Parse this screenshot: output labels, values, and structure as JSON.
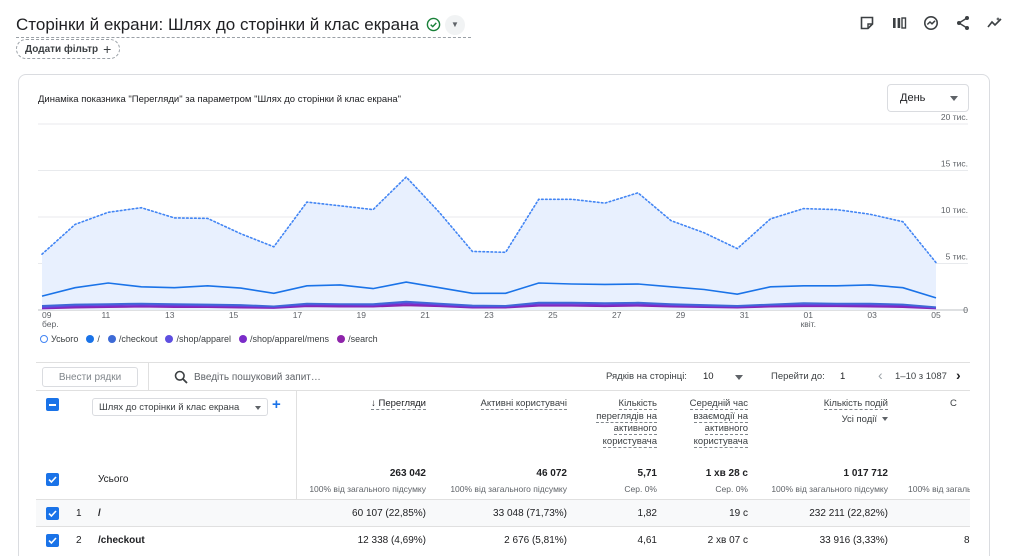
{
  "header": {
    "title": "Сторінки й екрани: Шлях до сторінки й клас екрана",
    "add_filter_label": "Додати фільтр"
  },
  "chart_card": {
    "title": "Динаміка показника \"Перегляди\" за параметром \"Шлях до сторінки й клас екрана\"",
    "granularity": "День"
  },
  "chart_data": {
    "type": "line",
    "x_tick_labels": [
      {
        "day": "09",
        "month": "бер."
      },
      {
        "day": "11",
        "month": ""
      },
      {
        "day": "13",
        "month": ""
      },
      {
        "day": "15",
        "month": ""
      },
      {
        "day": "17",
        "month": ""
      },
      {
        "day": "19",
        "month": ""
      },
      {
        "day": "21",
        "month": ""
      },
      {
        "day": "23",
        "month": ""
      },
      {
        "day": "25",
        "month": ""
      },
      {
        "day": "27",
        "month": ""
      },
      {
        "day": "29",
        "month": ""
      },
      {
        "day": "31",
        "month": ""
      },
      {
        "day": "01",
        "month": "квіт."
      },
      {
        "day": "03",
        "month": ""
      },
      {
        "day": "05",
        "month": ""
      }
    ],
    "y_tick_labels": [
      "20 тис.",
      "15 тис.",
      "10 тис.",
      "5 тис.",
      "0"
    ],
    "ylim": [
      0,
      20000
    ],
    "grid": true,
    "series": [
      {
        "name": "Усього",
        "color": "#4285f4",
        "style": "dotted-area",
        "values": [
          6000,
          9200,
          10500,
          11000,
          9900,
          9850,
          8200,
          6800,
          11600,
          11200,
          10800,
          14300,
          10500,
          6300,
          6200,
          11900,
          11900,
          11500,
          12600,
          9600,
          8300,
          6600,
          9800,
          10900,
          10800,
          10300,
          9500,
          5100
        ]
      },
      {
        "name": "/",
        "color": "#1a73e8",
        "style": "solid",
        "values": [
          1500,
          2400,
          2900,
          2500,
          2400,
          2600,
          2350,
          1800,
          2600,
          2700,
          2300,
          3000,
          2400,
          1800,
          1800,
          2900,
          2800,
          2750,
          2800,
          2500,
          2200,
          1700,
          2500,
          2600,
          2600,
          2700,
          2400,
          1300
        ]
      },
      {
        "name": "/checkout",
        "color": "#3d6ad6",
        "style": "solid",
        "values": [
          450,
          600,
          650,
          700,
          650,
          600,
          550,
          400,
          700,
          650,
          650,
          900,
          700,
          500,
          450,
          800,
          800,
          750,
          800,
          650,
          550,
          450,
          600,
          750,
          700,
          700,
          600,
          300
        ]
      },
      {
        "name": "/shop/apparel",
        "color": "#5e4fe0",
        "style": "solid",
        "values": [
          300,
          500,
          550,
          600,
          550,
          500,
          450,
          350,
          600,
          600,
          550,
          800,
          600,
          400,
          400,
          700,
          700,
          650,
          700,
          550,
          450,
          400,
          550,
          600,
          600,
          600,
          550,
          250
        ]
      },
      {
        "name": "/shop/apparel/mens",
        "color": "#7b2cc9",
        "style": "solid",
        "values": [
          200,
          350,
          400,
          450,
          400,
          400,
          350,
          250,
          500,
          450,
          450,
          650,
          500,
          300,
          300,
          550,
          550,
          500,
          550,
          450,
          350,
          300,
          450,
          500,
          500,
          450,
          400,
          200
        ]
      },
      {
        "name": "/search",
        "color": "#8e24aa",
        "style": "solid",
        "values": [
          150,
          250,
          300,
          350,
          300,
          300,
          250,
          200,
          400,
          350,
          350,
          500,
          400,
          250,
          250,
          450,
          450,
          400,
          450,
          350,
          300,
          250,
          350,
          400,
          400,
          350,
          300,
          150
        ]
      }
    ]
  },
  "legend": [
    {
      "name": "Усього",
      "color": "#4285f4",
      "hollow": true
    },
    {
      "name": "/",
      "color": "#1a73e8",
      "hollow": false
    },
    {
      "name": "/checkout",
      "color": "#3d6ad6",
      "hollow": false
    },
    {
      "name": "/shop/apparel",
      "color": "#5e4fe0",
      "hollow": false
    },
    {
      "name": "/shop/apparel/mens",
      "color": "#7b2cc9",
      "hollow": false
    },
    {
      "name": "/search",
      "color": "#8e24aa",
      "hollow": false
    }
  ],
  "table_toolbar": {
    "plot_rows_label": "Внести рядки",
    "search_placeholder": "Введіть пошуковий запит…",
    "rows_per_page_label": "Рядків на сторінці:",
    "rows_per_page_value": "10",
    "goto_label": "Перейти до:",
    "goto_value": "1",
    "pagination_text": "1–10 з 1087"
  },
  "table": {
    "dimension_select": "Шлях до сторінки й клас екрана",
    "columns": [
      {
        "label": "↓ Перегляди"
      },
      {
        "label": "Активні користувачі"
      },
      {
        "label": "Кількість переглядів на активного користувача"
      },
      {
        "label": "Середній час взаємодії на активного користувача"
      },
      {
        "label": "Кількість подій",
        "sub": "Усі події"
      },
      {
        "label": "С"
      }
    ],
    "totals": {
      "label": "Усього",
      "values": [
        "263 042",
        "46 072",
        "5,71",
        "1 хв 28 с",
        "1 017 712",
        ""
      ],
      "subs": [
        "100% від загального підсумку",
        "100% від загального підсумку",
        "Сер. 0%",
        "Сер. 0%",
        "100% від загального підсумку",
        "100% від загаль"
      ]
    },
    "rows": [
      {
        "index": "1",
        "path": "/",
        "values": [
          "60 107 (22,85%)",
          "33 048 (71,73%)",
          "1,82",
          "19 с",
          "232 211 (22,82%)",
          ""
        ]
      },
      {
        "index": "2",
        "path": "/checkout",
        "values": [
          "12 338 (4,69%)",
          "2 676 (5,81%)",
          "4,61",
          "2 хв 07 с",
          "33 916 (3,33%)",
          "8"
        ]
      }
    ]
  }
}
